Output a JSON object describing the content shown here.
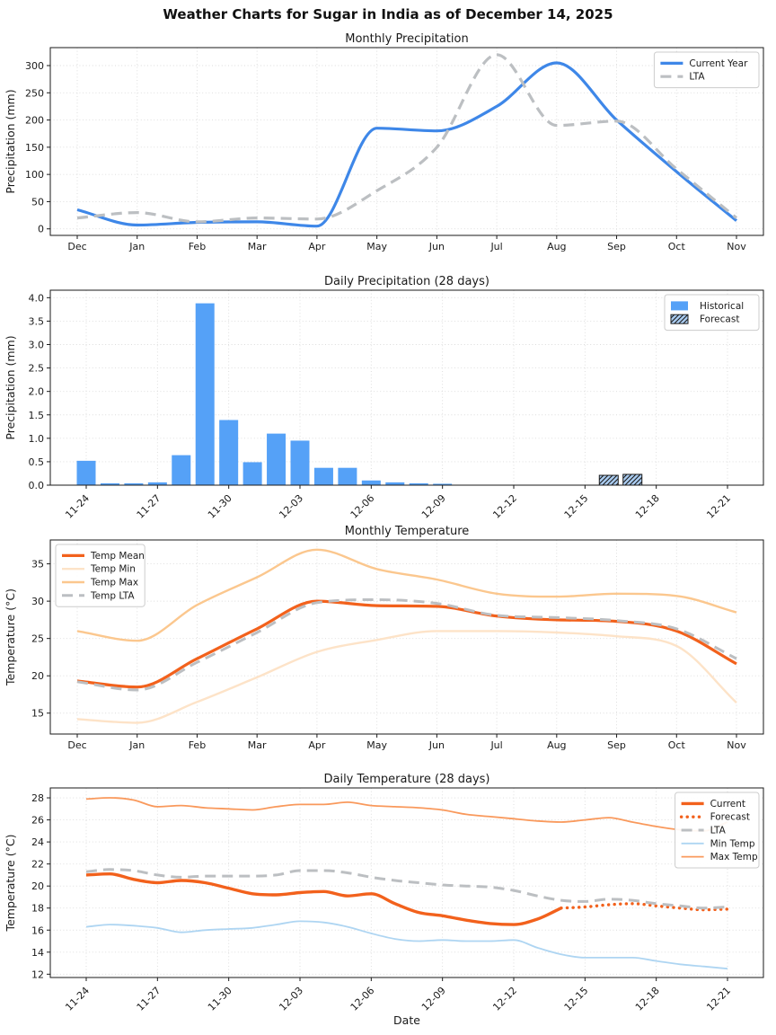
{
  "title": "Weather Charts for Sugar in India as of December 14, 2025",
  "charts": [
    {
      "id": "monthly_precip",
      "type": "line",
      "title": "Monthly Precipitation",
      "ylabel": "Precipitation (mm)",
      "categories": [
        "Dec",
        "Jan",
        "Feb",
        "Mar",
        "Apr",
        "May",
        "Jun",
        "Jul",
        "Aug",
        "Sep",
        "Oct",
        "Nov"
      ],
      "ylim": [
        -12,
        333
      ],
      "yticks": [
        0,
        50,
        100,
        150,
        200,
        250,
        300
      ],
      "ytick_labels": [
        "0",
        "50",
        "100",
        "150",
        "200",
        "250",
        "300"
      ],
      "legend_position": "top-right",
      "series": [
        {
          "name": "Current Year",
          "color": "#3e87e8",
          "style": "solid",
          "width": 3.2,
          "values": [
            35,
            7,
            12,
            13,
            5,
            185,
            180,
            225,
            305,
            200,
            105,
            15
          ]
        },
        {
          "name": "LTA",
          "color": "#bcbfc2",
          "style": "dashed",
          "width": 3.2,
          "values": [
            20,
            30,
            13,
            20,
            18,
            70,
            150,
            320,
            190,
            198,
            110,
            20
          ]
        }
      ]
    },
    {
      "id": "daily_precip",
      "type": "bar",
      "title": "Daily Precipitation (28 days)",
      "ylabel": "Precipitation (mm)",
      "dates": [
        "11-24",
        "11-25",
        "11-26",
        "11-27",
        "11-28",
        "11-29",
        "11-30",
        "12-01",
        "12-02",
        "12-03",
        "12-04",
        "12-05",
        "12-06",
        "12-07",
        "12-08",
        "12-09",
        "12-10",
        "12-11",
        "12-12",
        "12-13",
        "12-14",
        "12-15",
        "12-16",
        "12-17",
        "12-18",
        "12-19",
        "12-20",
        "12-21"
      ],
      "xtick_labels": [
        "11-24",
        "11-27",
        "11-30",
        "12-03",
        "12-06",
        "12-09",
        "12-12",
        "12-15",
        "12-18",
        "12-21"
      ],
      "ylim": [
        0,
        4.16
      ],
      "yticks": [
        0,
        0.5,
        1.0,
        1.5,
        2.0,
        2.5,
        3.0,
        3.5,
        4.0
      ],
      "ytick_labels": [
        "0.0",
        "0.5",
        "1.0",
        "1.5",
        "2.0",
        "2.5",
        "3.0",
        "3.5",
        "4.0"
      ],
      "bar_color": "#55a1f7",
      "forecast_fill": "#abcdf2",
      "historical": [
        0.52,
        0.04,
        0.04,
        0.06,
        0.64,
        3.88,
        1.39,
        0.49,
        1.1,
        0.95,
        0.37,
        0.37,
        0.1,
        0.06,
        0.04,
        0.03,
        0,
        0,
        0,
        0,
        0,
        null,
        null,
        null,
        null,
        null,
        null,
        null
      ],
      "forecast": [
        null,
        null,
        null,
        null,
        null,
        null,
        null,
        null,
        null,
        null,
        null,
        null,
        null,
        null,
        null,
        null,
        null,
        null,
        null,
        null,
        null,
        0,
        0.21,
        0.23,
        0,
        0,
        0,
        0
      ],
      "legend_position": "top-right",
      "legend_entries": [
        {
          "label": "Historical",
          "kind": "patch",
          "fill": "#55a1f7",
          "hatch": false
        },
        {
          "label": "Forecast",
          "kind": "patch",
          "fill": "#abcdf2",
          "hatch": true
        }
      ]
    },
    {
      "id": "monthly_temp",
      "type": "line",
      "title": "Monthly Temperature",
      "ylabel": "Temperature (°C)",
      "categories": [
        "Dec",
        "Jan",
        "Feb",
        "Mar",
        "Apr",
        "May",
        "Jun",
        "Jul",
        "Aug",
        "Sep",
        "Oct",
        "Nov"
      ],
      "ylim": [
        12.2,
        38.2
      ],
      "yticks": [
        15,
        20,
        25,
        30,
        35
      ],
      "ytick_labels": [
        "15",
        "20",
        "25",
        "30",
        "35"
      ],
      "legend_position": "top-left",
      "series": [
        {
          "name": "Temp Mean",
          "color": "#f2611c",
          "style": "solid",
          "width": 3.2,
          "values": [
            19.3,
            18.5,
            22.3,
            26.3,
            30.0,
            29.4,
            29.3,
            28.0,
            27.5,
            27.3,
            26.0,
            21.6
          ]
        },
        {
          "name": "Temp Min",
          "color": "#fde3c8",
          "style": "solid",
          "width": 2.4,
          "values": [
            14.2,
            13.7,
            16.5,
            19.8,
            23.2,
            24.8,
            26.0,
            26.0,
            25.8,
            25.3,
            24.0,
            16.4
          ]
        },
        {
          "name": "Temp Max",
          "color": "#fbc78e",
          "style": "solid",
          "width": 2.4,
          "values": [
            26.0,
            24.7,
            29.5,
            33.2,
            36.9,
            34.3,
            32.9,
            31.0,
            30.6,
            31.0,
            30.7,
            28.5
          ]
        },
        {
          "name": "Temp LTA",
          "color": "#bcbfc2",
          "style": "dashed",
          "width": 3.0,
          "values": [
            19.2,
            18.1,
            21.8,
            25.8,
            29.8,
            30.2,
            29.7,
            28.1,
            27.8,
            27.4,
            26.3,
            22.3
          ]
        }
      ]
    },
    {
      "id": "daily_temp",
      "type": "line",
      "title": "Daily Temperature (28 days)",
      "xlabel": "Date",
      "ylabel": "Temperature (°C)",
      "dates": [
        "11-24",
        "11-25",
        "11-26",
        "11-27",
        "11-28",
        "11-29",
        "11-30",
        "12-01",
        "12-02",
        "12-03",
        "12-04",
        "12-05",
        "12-06",
        "12-07",
        "12-08",
        "12-09",
        "12-10",
        "12-11",
        "12-12",
        "12-13",
        "12-14",
        "12-15",
        "12-16",
        "12-17",
        "12-18",
        "12-19",
        "12-20",
        "12-21"
      ],
      "xtick_labels": [
        "11-24",
        "11-27",
        "11-30",
        "12-03",
        "12-06",
        "12-09",
        "12-12",
        "12-15",
        "12-18",
        "12-21"
      ],
      "ylim": [
        11.7,
        28.9
      ],
      "yticks": [
        12,
        14,
        16,
        18,
        20,
        22,
        24,
        26,
        28
      ],
      "ytick_labels": [
        "12",
        "14",
        "16",
        "18",
        "20",
        "22",
        "24",
        "26",
        "28"
      ],
      "legend_position": "top-right",
      "series": [
        {
          "name": "Current",
          "color": "#f2611c",
          "style": "solid",
          "width": 3.4,
          "values": [
            21.0,
            21.1,
            20.6,
            20.3,
            20.5,
            20.3,
            19.8,
            19.3,
            19.2,
            19.4,
            19.5,
            19.1,
            19.3,
            18.4,
            17.6,
            17.3,
            16.9,
            16.6,
            16.5,
            17.0,
            18.0,
            null,
            null,
            null,
            null,
            null,
            null,
            null
          ]
        },
        {
          "name": "Forecast",
          "color": "#f2611c",
          "style": "dotted",
          "width": 3.4,
          "values": [
            null,
            null,
            null,
            null,
            null,
            null,
            null,
            null,
            null,
            null,
            null,
            null,
            null,
            null,
            null,
            null,
            null,
            null,
            null,
            null,
            18.0,
            18.1,
            18.3,
            18.4,
            18.2,
            18.0,
            17.85,
            17.9
          ]
        },
        {
          "name": "LTA",
          "color": "#bcbfc2",
          "style": "dashed",
          "width": 3.0,
          "values": [
            21.3,
            21.5,
            21.4,
            21.0,
            20.8,
            20.9,
            20.9,
            20.9,
            21.0,
            21.4,
            21.4,
            21.2,
            20.8,
            20.5,
            20.3,
            20.1,
            20.0,
            19.9,
            19.6,
            19.1,
            18.7,
            18.6,
            18.8,
            18.7,
            18.4,
            18.2,
            18.0,
            18.1
          ]
        },
        {
          "name": "Min Temp",
          "color": "#aed5f2",
          "style": "solid",
          "width": 1.8,
          "values": [
            16.3,
            16.5,
            16.4,
            16.2,
            15.8,
            16.0,
            16.1,
            16.2,
            16.5,
            16.8,
            16.7,
            16.3,
            15.7,
            15.2,
            15.0,
            15.1,
            15.0,
            15.0,
            15.1,
            14.4,
            13.8,
            13.5,
            13.5,
            13.5,
            13.2,
            12.9,
            12.7,
            12.5
          ]
        },
        {
          "name": "Max Temp",
          "color": "#f9995c",
          "style": "solid",
          "width": 1.8,
          "values": [
            27.9,
            28.0,
            27.8,
            27.2,
            27.3,
            27.1,
            27.0,
            26.9,
            27.2,
            27.4,
            27.4,
            27.6,
            27.3,
            27.2,
            27.1,
            26.9,
            26.5,
            26.3,
            26.1,
            25.9,
            25.8,
            26.0,
            26.2,
            25.8,
            25.4,
            25.1,
            25.0,
            25.8
          ]
        }
      ]
    }
  ]
}
